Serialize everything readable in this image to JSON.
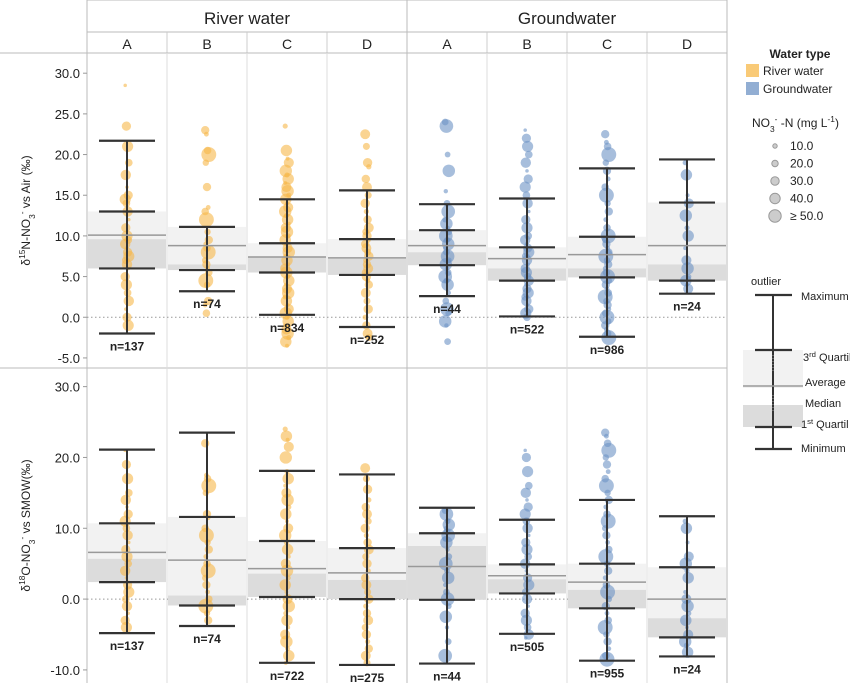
{
  "chart_data": {
    "type": "scatter",
    "groups": [
      "River water",
      "Groundwater"
    ],
    "columns": [
      "A",
      "B",
      "C",
      "D",
      "A",
      "B",
      "C",
      "D"
    ],
    "panels": [
      {
        "ylabel": "δ15N-NO3- vs Air (‰)",
        "ylabel_parts": [
          "δ",
          "15",
          "N-NO",
          "3",
          "-",
          " vs Air (‰)"
        ],
        "yticks": [
          "30.0",
          "25.0",
          "20.0",
          "15.0",
          "10.0",
          "5.0",
          "0.0",
          "-5.0"
        ],
        "ylim": [
          -5.5,
          31.5
        ],
        "boxes": [
          {
            "n": "n=137",
            "min": -2.0,
            "q1": 6.0,
            "median": 9.6,
            "mean": 10.1,
            "q3": 13.0,
            "max": 21.7,
            "pts": [
              28.5,
              23.5,
              21.0,
              19.0,
              17.5,
              16.0,
              15.0,
              14.5,
              14.0,
              13.0,
              12.0,
              11.0,
              10.0,
              9.5,
              9.0,
              8.5,
              8.0,
              7.5,
              7.0,
              6.5,
              6.0,
              5.0,
              4.0,
              3.0,
              2.0,
              1.0,
              0.0,
              -1.0
            ]
          },
          {
            "n": "n=74",
            "min": 3.2,
            "q1": 5.8,
            "median": 6.5,
            "mean": 8.8,
            "q3": 11.1,
            "max": 11.1,
            "pts": [
              23.0,
              22.5,
              20.5,
              20.0,
              19.0,
              16.0,
              13.5,
              13.0,
              12.0,
              10.5,
              9.5,
              9.0,
              8.5,
              8.0,
              7.0,
              6.5,
              6.0,
              5.5,
              4.5,
              4.0,
              2.0,
              1.5,
              0.5
            ]
          },
          {
            "n": "n=834",
            "min": 0.3,
            "q1": 5.5,
            "median": 7.5,
            "mean": 7.4,
            "q3": 9.1,
            "max": 14.5,
            "pts": [
              23.5,
              20.5,
              19.5,
              19.0,
              18.0,
              17.5,
              17.0,
              16.5,
              16.0,
              15.5,
              15.0,
              14.5,
              14.0,
              13.5,
              13.0,
              12.5,
              12.0,
              11.5,
              11.0,
              10.5,
              10.0,
              9.5,
              9.0,
              8.5,
              8.0,
              7.5,
              7.0,
              6.5,
              6.0,
              5.5,
              5.0,
              4.5,
              4.0,
              3.5,
              3.0,
              2.5,
              2.0,
              1.5,
              1.0,
              0.5,
              0.0,
              -0.5,
              -1.0,
              -1.5,
              -2.0,
              -2.5,
              -3.0,
              -3.5
            ]
          },
          {
            "n": "n=252",
            "min": -1.2,
            "q1": 5.2,
            "median": 7.2,
            "mean": 7.3,
            "q3": 9.6,
            "max": 15.6,
            "pts": [
              22.5,
              21.0,
              19.0,
              18.5,
              17.0,
              16.0,
              15.0,
              14.0,
              13.0,
              12.0,
              11.0,
              10.5,
              10.0,
              9.5,
              9.0,
              8.5,
              8.0,
              7.5,
              7.0,
              6.5,
              6.0,
              5.5,
              5.0,
              4.5,
              4.0,
              3.0,
              2.0,
              1.0,
              0.0,
              -1.0,
              -2.0,
              -2.5
            ]
          },
          {
            "n": "n=44",
            "min": 2.6,
            "q1": 6.4,
            "median": 8.0,
            "mean": 8.8,
            "q3": 10.7,
            "max": 13.9,
            "pts": [
              24.0,
              23.5,
              20.0,
              18.0,
              15.5,
              14.0,
              13.0,
              12.0,
              11.5,
              11.0,
              10.5,
              10.0,
              9.5,
              9.0,
              8.5,
              8.0,
              7.5,
              7.0,
              6.5,
              6.0,
              5.5,
              5.0,
              4.5,
              4.0,
              3.0,
              2.0,
              1.0,
              0.5,
              -0.5,
              -1.0,
              -3.0
            ]
          },
          {
            "n": "n=522",
            "min": 0.1,
            "q1": 4.5,
            "median": 6.0,
            "mean": 7.2,
            "q3": 8.6,
            "max": 14.6,
            "pts": [
              23.0,
              22.0,
              21.0,
              20.0,
              19.0,
              18.0,
              17.0,
              16.0,
              15.0,
              14.0,
              13.0,
              12.0,
              11.0,
              10.0,
              9.5,
              9.0,
              8.5,
              8.0,
              7.5,
              7.0,
              6.5,
              6.0,
              5.5,
              5.0,
              4.5,
              4.0,
              3.5,
              3.0,
              2.5,
              2.0,
              1.5,
              1.0,
              0.5,
              0.0
            ]
          },
          {
            "n": "n=986",
            "min": -2.4,
            "q1": 4.9,
            "median": 6.0,
            "mean": 7.7,
            "q3": 9.9,
            "max": 18.3,
            "pts": [
              22.5,
              21.5,
              21.0,
              20.0,
              19.0,
              18.0,
              17.0,
              16.0,
              15.0,
              14.0,
              13.0,
              12.0,
              11.0,
              10.0,
              9.5,
              9.0,
              8.5,
              8.0,
              7.5,
              7.0,
              6.5,
              6.0,
              5.5,
              5.0,
              4.5,
              4.0,
              3.5,
              3.0,
              2.5,
              2.0,
              1.5,
              1.0,
              0.5,
              0.0,
              -0.5,
              -1.0,
              -1.5,
              -2.0,
              -2.5
            ]
          },
          {
            "n": "n=24",
            "min": 2.9,
            "q1": 4.5,
            "median": 6.5,
            "mean": 8.8,
            "q3": 14.1,
            "max": 19.4,
            "pts": [
              19.0,
              17.5,
              15.0,
              14.0,
              12.5,
              11.0,
              10.0,
              8.5,
              7.0,
              6.0,
              5.0,
              4.5,
              4.0,
              3.5
            ]
          }
        ]
      },
      {
        "ylabel": "δ18O-NO3- vs SMOW(‰)",
        "ylabel_parts": [
          "δ",
          "18",
          "O-NO",
          "3",
          "-",
          " vs SMOW(‰)"
        ],
        "yticks": [
          "30.0",
          "20.0",
          "10.0",
          "0.0",
          "-10.0"
        ],
        "ylim": [
          -11.0,
          31.5
        ],
        "boxes": [
          {
            "n": "n=137",
            "min": -4.8,
            "q1": 2.4,
            "median": 5.7,
            "mean": 6.6,
            "q3": 10.7,
            "max": 21.1,
            "pts": [
              21.0,
              19.0,
              17.0,
              15.0,
              14.0,
              13.0,
              12.0,
              11.0,
              10.0,
              9.0,
              8.0,
              7.0,
              6.0,
              5.0,
              4.0,
              3.0,
              2.0,
              1.0,
              0.0,
              -1.0,
              -2.0,
              -3.0,
              -4.0
            ]
          },
          {
            "n": "n=74",
            "min": -3.8,
            "q1": -0.9,
            "median": 0.5,
            "mean": 5.5,
            "q3": 11.6,
            "max": 23.5,
            "pts": [
              22.0,
              17.5,
              17.0,
              16.0,
              15.0,
              12.0,
              11.5,
              10.0,
              9.0,
              8.0,
              7.0,
              6.0,
              5.0,
              4.0,
              3.0,
              2.0,
              1.0,
              0.0,
              -1.0,
              -2.0,
              -3.0
            ]
          },
          {
            "n": "n=722",
            "min": -9.0,
            "q1": 0.3,
            "median": 3.6,
            "mean": 4.3,
            "q3": 8.2,
            "max": 18.1,
            "pts": [
              24.0,
              23.0,
              22.5,
              21.5,
              20.0,
              18.0,
              17.0,
              16.0,
              15.0,
              14.0,
              13.0,
              12.0,
              11.0,
              10.0,
              9.0,
              8.0,
              7.0,
              6.0,
              5.0,
              4.0,
              3.0,
              2.0,
              1.0,
              0.0,
              -1.0,
              -2.0,
              -3.0,
              -4.0,
              -5.0,
              -6.0,
              -7.0,
              -8.0,
              -9.0
            ]
          },
          {
            "n": "n=275",
            "min": -9.3,
            "q1": 0.0,
            "median": 2.7,
            "mean": 3.7,
            "q3": 7.2,
            "max": 17.6,
            "pts": [
              18.5,
              17.0,
              15.5,
              14.0,
              13.0,
              12.0,
              11.0,
              10.0,
              9.0,
              8.0,
              7.0,
              6.0,
              5.0,
              4.0,
              3.0,
              2.0,
              1.0,
              0.0,
              -1.0,
              -2.0,
              -3.0,
              -4.0,
              -5.0,
              -6.0,
              -7.0,
              -8.0,
              -9.0
            ]
          },
          {
            "n": "n=44",
            "min": -9.1,
            "q1": -0.1,
            "median": 7.5,
            "mean": 4.6,
            "q3": 9.3,
            "max": 12.9,
            "pts": [
              12.5,
              12.0,
              11.0,
              10.5,
              10.0,
              9.5,
              9.0,
              8.5,
              8.0,
              7.0,
              6.0,
              5.0,
              4.0,
              3.0,
              2.0,
              1.0,
              0.0,
              -1.0,
              -2.5,
              -4.0,
              -6.0,
              -8.0
            ]
          },
          {
            "n": "n=505",
            "min": -4.9,
            "q1": 0.8,
            "median": 2.8,
            "mean": 3.3,
            "q3": 4.9,
            "max": 11.2,
            "pts": [
              21.0,
              20.0,
              18.0,
              16.0,
              15.0,
              14.0,
              13.0,
              12.0,
              11.0,
              10.0,
              9.0,
              8.0,
              7.0,
              6.0,
              5.0,
              4.0,
              3.0,
              2.0,
              1.0,
              0.0,
              -1.0,
              -2.0,
              -3.0,
              -4.0,
              -5.0,
              -5.5
            ]
          },
          {
            "n": "n=955",
            "min": -8.7,
            "q1": -1.3,
            "median": 1.3,
            "mean": 2.4,
            "q3": 5.0,
            "max": 14.0,
            "pts": [
              23.5,
              23.0,
              22.0,
              21.0,
              20.0,
              19.0,
              18.0,
              17.0,
              16.0,
              15.0,
              14.0,
              13.0,
              12.0,
              11.0,
              10.0,
              9.0,
              8.0,
              7.0,
              6.0,
              5.0,
              4.0,
              3.0,
              2.0,
              1.0,
              0.0,
              -1.0,
              -2.0,
              -3.0,
              -4.0,
              -5.0,
              -6.0,
              -7.0,
              -8.0,
              -8.5
            ]
          },
          {
            "n": "n=24",
            "min": -8.1,
            "q1": -5.4,
            "median": -2.7,
            "mean": 0.0,
            "q3": 4.5,
            "max": 11.7,
            "pts": [
              11.0,
              10.0,
              8.0,
              6.0,
              5.0,
              4.0,
              3.0,
              1.0,
              0.0,
              -1.0,
              -2.0,
              -3.0,
              -4.0,
              -5.0,
              -6.0,
              -6.5,
              -7.5
            ]
          }
        ]
      }
    ],
    "legend": {
      "title": "Water type",
      "items": [
        {
          "label": "River water",
          "color": "#f7b84a"
        },
        {
          "label": "Groundwater",
          "color": "#6d93c4"
        }
      ],
      "size_title_parts": [
        "NO",
        "3",
        "-",
        " -N (mg L",
        "-1",
        ")"
      ],
      "size_items": [
        "10.0",
        "20.0",
        "30.0",
        "40.0",
        "≥ 50.0"
      ]
    },
    "guide": {
      "labels": [
        "outlier",
        "Maximum",
        "3rd Quartil",
        "Average",
        "Median",
        "1st Quartil",
        "Minimum"
      ],
      "q3_parts": [
        "3",
        "rd",
        " Quartil"
      ],
      "q1_parts": [
        "1",
        "st",
        " Quartil"
      ]
    }
  }
}
